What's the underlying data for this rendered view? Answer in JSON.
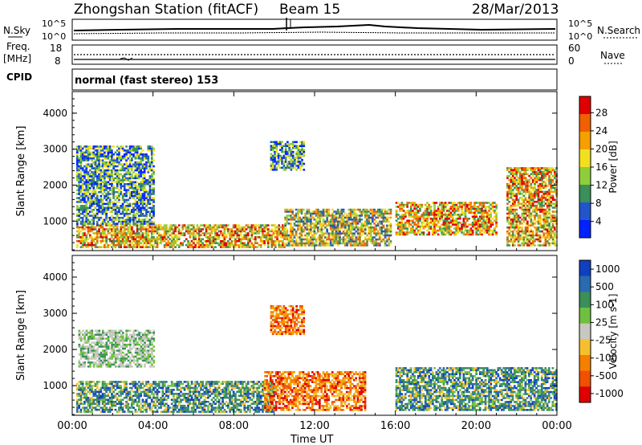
{
  "header": {
    "title": "Zhongshan Station (fitACF)",
    "beam": "Beam 15",
    "date": "28/Mar/2013"
  },
  "top_panels": {
    "nsky_label": "N.Sky",
    "nsearch_label": "N.Search",
    "noise_ticks": [
      "10^5",
      "10^0"
    ],
    "freq_label": "Freq.",
    "freq_unit": "[MHz]",
    "freq_ticks": [
      "18",
      "8"
    ],
    "nave_label": "Nave",
    "nave_ticks": [
      "60",
      "0"
    ],
    "cpid_label": "CPID",
    "cpid_text": "normal (fast stereo) 153"
  },
  "chart_data": [
    {
      "type": "heatmap",
      "panel": "power",
      "ylabel": "Slant Range [km]",
      "ylim": [
        180,
        4600
      ],
      "yticks": [
        "1000",
        "2000",
        "3000",
        "4000"
      ],
      "xlim": [
        "00:00",
        "24:00"
      ],
      "colorbar_label": "Power [dB]",
      "colorbar_ticks": [
        "4",
        "8",
        "12",
        "16",
        "20",
        "24",
        "28"
      ],
      "colorbar_colors": [
        "#0022ff",
        "#2255cc",
        "#3a8f5a",
        "#8fce3a",
        "#f0e020",
        "#f5a000",
        "#f06000",
        "#e00000"
      ],
      "regions": [
        {
          "t0": 0.2,
          "t1": 10.5,
          "r0": 250,
          "r1": 900,
          "value": "strong"
        },
        {
          "t0": 0.2,
          "t1": 4.0,
          "r0": 900,
          "r1": 3100,
          "value": "weak"
        },
        {
          "t0": 9.8,
          "t1": 11.5,
          "r0": 2400,
          "r1": 3200,
          "value": "weak"
        },
        {
          "t0": 10.5,
          "t1": 15.8,
          "r0": 300,
          "r1": 1300,
          "value": "medium"
        },
        {
          "t0": 16.0,
          "t1": 21.0,
          "r0": 600,
          "r1": 1500,
          "value": "strong"
        },
        {
          "t0": 21.5,
          "t1": 24.0,
          "r0": 300,
          "r1": 2500,
          "value": "strong"
        }
      ]
    },
    {
      "type": "heatmap",
      "panel": "velocity",
      "ylabel": "Slant Range [km]",
      "ylim": [
        180,
        4600
      ],
      "yticks": [
        "1000",
        "2000",
        "3000",
        "4000"
      ],
      "xlabel": "Time UT",
      "xticks": [
        "00:00",
        "04:00",
        "08:00",
        "12:00",
        "16:00",
        "20:00",
        "00:00"
      ],
      "colorbar_label": "Velocity",
      "colorbar_unit": "[m s-1]",
      "colorbar_ticks": [
        "1000",
        "500",
        "100",
        "25",
        "-25",
        "-100",
        "-500",
        "-1000"
      ],
      "colorbar_colors": [
        "#1040c0",
        "#2a6ab0",
        "#3a8f5a",
        "#6fc040",
        "#c8c8c0",
        "#f5c030",
        "#f58000",
        "#f05000",
        "#e00000"
      ],
      "regions": [
        {
          "t0": 0.2,
          "t1": 10.0,
          "r0": 250,
          "r1": 1100,
          "value": "toward"
        },
        {
          "t0": 0.3,
          "t1": 4.0,
          "r0": 1500,
          "r1": 2500,
          "value": "ground"
        },
        {
          "t0": 9.8,
          "t1": 11.5,
          "r0": 2400,
          "r1": 3200,
          "value": "away"
        },
        {
          "t0": 9.5,
          "t1": 14.5,
          "r0": 300,
          "r1": 1400,
          "value": "away"
        },
        {
          "t0": 16.0,
          "t1": 24.0,
          "r0": 300,
          "r1": 1500,
          "value": "toward"
        }
      ]
    }
  ]
}
